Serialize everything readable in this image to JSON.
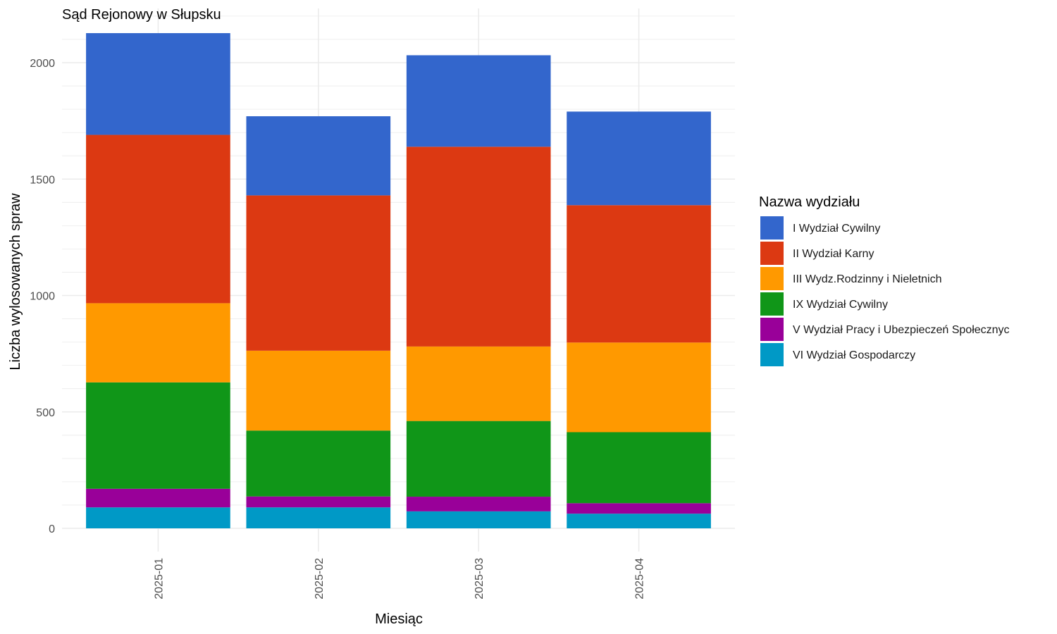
{
  "chart_data": {
    "type": "bar",
    "stacked": true,
    "title": "Sąd Rejonowy w Słupsku",
    "xlabel": "Miesiąc",
    "ylabel": "Liczba wylosowanych spraw",
    "categories": [
      "2025-01",
      "2025-02",
      "2025-03",
      "2025-04"
    ],
    "ylim": [
      0,
      2220
    ],
    "yticks": [
      0,
      500,
      1000,
      1500,
      2000
    ],
    "grid": true,
    "legend": {
      "title": "Nazwa wydziału",
      "placement": "right"
    },
    "series": [
      {
        "name": "VI Wydział Gospodarczy",
        "color": "#0099C6",
        "values": [
          90,
          90,
          73,
          63
        ]
      },
      {
        "name": "V Wydział Pracy i Ubezpieczeń Społecznyc",
        "color": "#990099",
        "values": [
          80,
          47,
          63,
          45
        ]
      },
      {
        "name": "IX Wydział Cywilny",
        "color": "#109618",
        "values": [
          457,
          283,
          325,
          305
        ]
      },
      {
        "name": "III Wydz.Rodzinny i Nieletnich",
        "color": "#FF9900",
        "values": [
          340,
          343,
          320,
          385
        ]
      },
      {
        "name": "II Wydział Karny",
        "color": "#DC3912",
        "values": [
          723,
          667,
          858,
          590
        ]
      },
      {
        "name": "I Wydział Cywilny",
        "color": "#3366CC",
        "values": [
          437,
          340,
          393,
          402
        ]
      }
    ],
    "legend_order": [
      "I Wydział Cywilny",
      "II Wydział Karny",
      "III Wydz.Rodzinny i Nieletnich",
      "IX Wydział Cywilny",
      "V Wydział Pracy i Ubezpieczeń Społecznyc",
      "VI Wydział Gospodarczy"
    ]
  }
}
